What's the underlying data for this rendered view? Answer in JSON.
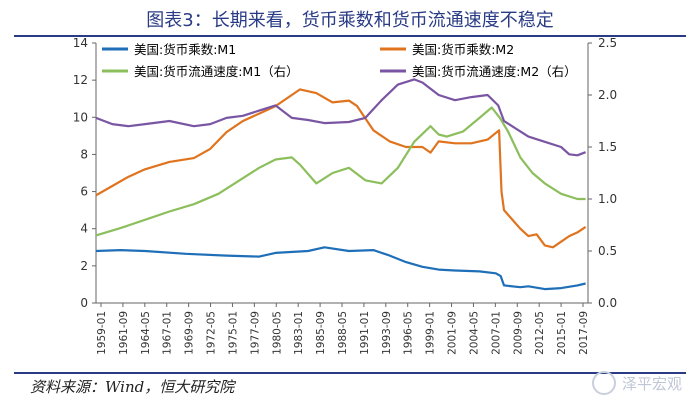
{
  "title": "图表3：长期来看，货币乘数和货币流通速度不稳定",
  "source": "资料来源：Wind，恒大研究院",
  "watermark": "泽平宏观",
  "chart_data": {
    "type": "line",
    "y_left": {
      "min": 0,
      "max": 14,
      "ticks": [
        0,
        2,
        4,
        6,
        8,
        10,
        12,
        14
      ]
    },
    "y_right": {
      "min": 0,
      "max": 2.5,
      "ticks": [
        "0.0",
        "0.5",
        "1.0",
        "1.5",
        "2.0",
        "2.5"
      ]
    },
    "x_ticks": [
      "1959-01",
      "1961-09",
      "1964-05",
      "1967-01",
      "1969-09",
      "1972-05",
      "1975-01",
      "1977-09",
      "1980-05",
      "1983-01",
      "1985-09",
      "1988-05",
      "1991-01",
      "1993-09",
      "1996-05",
      "1999-01",
      "2001-09",
      "2004-05",
      "2007-01",
      "2009-09",
      "2012-05",
      "2015-01",
      "2017-09"
    ],
    "x_range": [
      1959.0,
      2019.3
    ],
    "legend_position": "top",
    "series": [
      {
        "name": "美国:货币乘数:M1",
        "axis": "left",
        "color": "#1f6fb8",
        "points": [
          [
            1959,
            2.8
          ],
          [
            1962,
            2.85
          ],
          [
            1965,
            2.8
          ],
          [
            1970,
            2.65
          ],
          [
            1975,
            2.55
          ],
          [
            1979,
            2.5
          ],
          [
            1981,
            2.7
          ],
          [
            1985,
            2.8
          ],
          [
            1987,
            3.0
          ],
          [
            1990,
            2.8
          ],
          [
            1993,
            2.85
          ],
          [
            1995,
            2.55
          ],
          [
            1997,
            2.2
          ],
          [
            1999,
            1.95
          ],
          [
            2001,
            1.8
          ],
          [
            2003,
            1.75
          ],
          [
            2006,
            1.7
          ],
          [
            2008,
            1.6
          ],
          [
            2008.6,
            1.45
          ],
          [
            2009,
            0.95
          ],
          [
            2011,
            0.85
          ],
          [
            2012,
            0.9
          ],
          [
            2014,
            0.75
          ],
          [
            2016,
            0.8
          ],
          [
            2018,
            0.95
          ],
          [
            2019,
            1.05
          ]
        ]
      },
      {
        "name": "美国:货币乘数:M2",
        "axis": "left",
        "color": "#e0731e",
        "points": [
          [
            1959,
            5.8
          ],
          [
            1961,
            6.3
          ],
          [
            1963,
            6.8
          ],
          [
            1965,
            7.2
          ],
          [
            1968,
            7.6
          ],
          [
            1971,
            7.8
          ],
          [
            1973,
            8.3
          ],
          [
            1975,
            9.2
          ],
          [
            1977,
            9.8
          ],
          [
            1979,
            10.2
          ],
          [
            1981,
            10.6
          ],
          [
            1983,
            11.2
          ],
          [
            1984,
            11.5
          ],
          [
            1986,
            11.3
          ],
          [
            1988,
            10.8
          ],
          [
            1990,
            10.9
          ],
          [
            1991,
            10.6
          ],
          [
            1993,
            9.3
          ],
          [
            1995,
            8.7
          ],
          [
            1997,
            8.4
          ],
          [
            1999,
            8.4
          ],
          [
            2000,
            8.1
          ],
          [
            2001,
            8.7
          ],
          [
            2003,
            8.6
          ],
          [
            2005,
            8.6
          ],
          [
            2007,
            8.8
          ],
          [
            2008.4,
            9.3
          ],
          [
            2008.7,
            6.0
          ],
          [
            2009,
            5.0
          ],
          [
            2010,
            4.5
          ],
          [
            2011,
            4.0
          ],
          [
            2012,
            3.6
          ],
          [
            2013,
            3.7
          ],
          [
            2014,
            3.1
          ],
          [
            2015,
            3.0
          ],
          [
            2016,
            3.3
          ],
          [
            2017,
            3.6
          ],
          [
            2018,
            3.8
          ],
          [
            2019,
            4.1
          ]
        ]
      },
      {
        "name": "美国:货币流通速度:M1（右）",
        "axis": "right",
        "color": "#8cbf5c",
        "points": [
          [
            1959,
            0.65
          ],
          [
            1962,
            0.72
          ],
          [
            1965,
            0.8
          ],
          [
            1968,
            0.88
          ],
          [
            1971,
            0.95
          ],
          [
            1974,
            1.05
          ],
          [
            1977,
            1.2
          ],
          [
            1979,
            1.3
          ],
          [
            1981,
            1.38
          ],
          [
            1983,
            1.4
          ],
          [
            1984,
            1.33
          ],
          [
            1986,
            1.15
          ],
          [
            1988,
            1.25
          ],
          [
            1990,
            1.3
          ],
          [
            1992,
            1.18
          ],
          [
            1994,
            1.15
          ],
          [
            1996,
            1.3
          ],
          [
            1998,
            1.55
          ],
          [
            2000,
            1.7
          ],
          [
            2001,
            1.62
          ],
          [
            2002,
            1.6
          ],
          [
            2004,
            1.65
          ],
          [
            2006,
            1.78
          ],
          [
            2007.5,
            1.88
          ],
          [
            2008.5,
            1.78
          ],
          [
            2009.5,
            1.65
          ],
          [
            2011,
            1.4
          ],
          [
            2012.5,
            1.25
          ],
          [
            2014,
            1.15
          ],
          [
            2016,
            1.05
          ],
          [
            2018,
            1.0
          ],
          [
            2019,
            1.0
          ]
        ]
      },
      {
        "name": "美国:货币流通速度:M2（右）",
        "axis": "right",
        "color": "#7a55a3",
        "points": [
          [
            1959,
            1.78
          ],
          [
            1961,
            1.72
          ],
          [
            1963,
            1.7
          ],
          [
            1965,
            1.72
          ],
          [
            1968,
            1.75
          ],
          [
            1971,
            1.7
          ],
          [
            1973,
            1.72
          ],
          [
            1975,
            1.78
          ],
          [
            1977,
            1.8
          ],
          [
            1979,
            1.85
          ],
          [
            1981,
            1.9
          ],
          [
            1983,
            1.78
          ],
          [
            1985,
            1.76
          ],
          [
            1987,
            1.73
          ],
          [
            1990,
            1.74
          ],
          [
            1992,
            1.78
          ],
          [
            1994,
            1.95
          ],
          [
            1996,
            2.1
          ],
          [
            1998,
            2.15
          ],
          [
            1999,
            2.12
          ],
          [
            2001,
            2.0
          ],
          [
            2003,
            1.95
          ],
          [
            2005,
            1.98
          ],
          [
            2007,
            2.0
          ],
          [
            2008.3,
            1.9
          ],
          [
            2009,
            1.75
          ],
          [
            2010,
            1.7
          ],
          [
            2012,
            1.6
          ],
          [
            2014,
            1.55
          ],
          [
            2016,
            1.5
          ],
          [
            2017,
            1.43
          ],
          [
            2018,
            1.42
          ],
          [
            2019,
            1.45
          ]
        ]
      }
    ]
  }
}
